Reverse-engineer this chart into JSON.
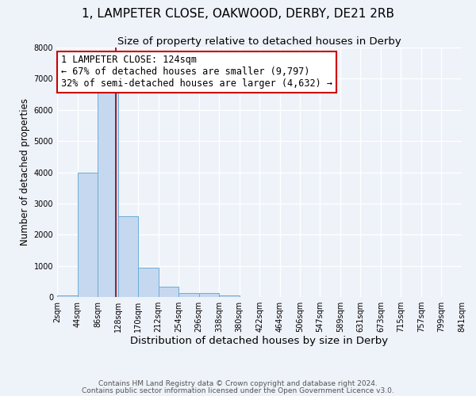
{
  "title": "1, LAMPETER CLOSE, OAKWOOD, DERBY, DE21 2RB",
  "subtitle": "Size of property relative to detached houses in Derby",
  "xlabel": "Distribution of detached houses by size in Derby",
  "ylabel": "Number of detached properties",
  "footer_line1": "Contains HM Land Registry data © Crown copyright and database right 2024.",
  "footer_line2": "Contains public sector information licensed under the Open Government Licence v3.0.",
  "bin_edges": [
    2,
    44,
    86,
    128,
    170,
    212,
    254,
    296,
    338,
    380,
    422,
    464,
    506,
    547,
    589,
    631,
    673,
    715,
    757,
    799,
    841
  ],
  "bar_heights": [
    50,
    4000,
    6600,
    2600,
    950,
    330,
    120,
    120,
    50,
    0,
    0,
    0,
    0,
    0,
    0,
    0,
    0,
    0,
    0,
    0
  ],
  "bar_color": "#c5d8f0",
  "bar_edge_color": "#6baed6",
  "vline_x": 124,
  "vline_color": "#8b0000",
  "annotation_text": "1 LAMPETER CLOSE: 124sqm\n← 67% of detached houses are smaller (9,797)\n32% of semi-detached houses are larger (4,632) →",
  "annotation_box_color": "white",
  "annotation_box_edge_color": "#cc0000",
  "annotation_fontsize": 8.5,
  "ylim": [
    0,
    8000
  ],
  "yticks": [
    0,
    1000,
    2000,
    3000,
    4000,
    5000,
    6000,
    7000,
    8000
  ],
  "xtick_labels": [
    "2sqm",
    "44sqm",
    "86sqm",
    "128sqm",
    "170sqm",
    "212sqm",
    "254sqm",
    "296sqm",
    "338sqm",
    "380sqm",
    "422sqm",
    "464sqm",
    "506sqm",
    "547sqm",
    "589sqm",
    "631sqm",
    "673sqm",
    "715sqm",
    "757sqm",
    "799sqm",
    "841sqm"
  ],
  "bg_color": "#eef2f9",
  "grid_color": "white",
  "title_fontsize": 11,
  "subtitle_fontsize": 9.5,
  "xlabel_fontsize": 9.5,
  "ylabel_fontsize": 8.5,
  "tick_fontsize": 7,
  "footer_fontsize": 6.5
}
